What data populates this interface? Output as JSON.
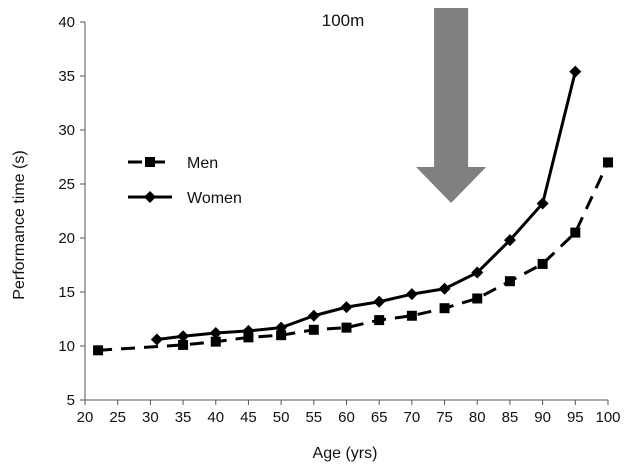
{
  "chart_data": {
    "type": "line",
    "title": "",
    "xlabel": "Age (yrs)",
    "ylabel": "Performance time (s)",
    "xlim": [
      20,
      100
    ],
    "ylim": [
      5,
      40
    ],
    "xticks": [
      20,
      25,
      30,
      35,
      40,
      45,
      50,
      55,
      60,
      65,
      70,
      75,
      80,
      85,
      90,
      95,
      100
    ],
    "yticks": [
      5,
      10,
      15,
      20,
      25,
      30,
      35,
      40
    ],
    "grid": false,
    "legend_position": "center-left",
    "annotations": [
      {
        "text": "100m",
        "arrow": "down",
        "arrow_x": 76,
        "arrow_color": "#808080"
      }
    ],
    "series": [
      {
        "name": "Men",
        "line_style": "dashed",
        "marker": "square",
        "color": "#000000",
        "x": [
          22,
          35,
          40,
          45,
          50,
          55,
          60,
          65,
          70,
          75,
          80,
          85,
          90,
          95,
          100
        ],
        "y": [
          9.6,
          10.1,
          10.4,
          10.8,
          11.0,
          11.5,
          11.7,
          12.4,
          12.8,
          13.5,
          14.4,
          16.0,
          17.6,
          20.5,
          27.0
        ]
      },
      {
        "name": "Women",
        "line_style": "solid",
        "marker": "diamond",
        "color": "#000000",
        "x": [
          31,
          35,
          40,
          45,
          50,
          55,
          60,
          65,
          70,
          75,
          80,
          85,
          90,
          95
        ],
        "y": [
          10.6,
          10.9,
          11.2,
          11.4,
          11.7,
          12.8,
          13.6,
          14.1,
          14.8,
          15.3,
          16.8,
          19.8,
          23.2,
          35.4
        ]
      }
    ]
  }
}
